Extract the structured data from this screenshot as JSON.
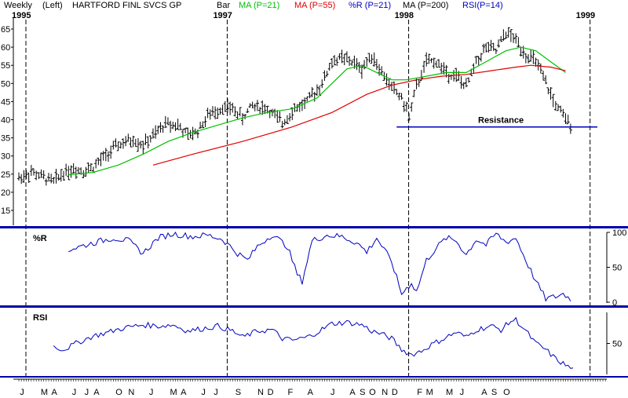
{
  "header": {
    "period": "Weekly",
    "axis_side": "(Left)",
    "title": "HARTFORD FINL SVCS GP",
    "chart_style": "Bar",
    "indicators": [
      {
        "label": "MA (P=21)",
        "color": "#00c000"
      },
      {
        "label": "MA (P=55)",
        "color": "#e00000"
      },
      {
        "label": "%R (P=21)",
        "color": "#0000c0"
      },
      {
        "label": "MA (P=200)",
        "color": "#000000"
      },
      {
        "label": "RSI(P=14)",
        "color": "#0000c0"
      }
    ]
  },
  "years": [
    {
      "label": "1995",
      "week": 0
    },
    {
      "label": "1997",
      "week": 81
    },
    {
      "label": "1998",
      "week": 154
    },
    {
      "label": "1999",
      "week": 227
    }
  ],
  "chart_data": [
    {
      "type": "bar",
      "name": "price",
      "ylim": [
        10,
        67
      ],
      "yticks": [
        15,
        20,
        25,
        30,
        35,
        40,
        45,
        50,
        55,
        60,
        65
      ],
      "ohlc_anchors": [
        [
          0,
          24
        ],
        [
          5,
          25.5
        ],
        [
          10,
          24
        ],
        [
          14,
          23
        ],
        [
          18,
          25.5
        ],
        [
          22,
          26.5
        ],
        [
          26,
          26
        ],
        [
          30,
          27
        ],
        [
          34,
          29.5
        ],
        [
          40,
          33
        ],
        [
          46,
          34.5
        ],
        [
          50,
          33
        ],
        [
          55,
          36
        ],
        [
          59,
          39
        ],
        [
          64,
          38.5
        ],
        [
          68,
          35.5
        ],
        [
          72,
          37
        ],
        [
          76,
          41
        ],
        [
          82,
          43.5
        ],
        [
          86,
          43
        ],
        [
          90,
          40.5
        ],
        [
          94,
          44
        ],
        [
          100,
          43
        ],
        [
          106,
          39
        ],
        [
          110,
          42.5
        ],
        [
          116,
          45
        ],
        [
          122,
          50
        ],
        [
          126,
          56
        ],
        [
          130,
          57
        ],
        [
          134,
          56
        ],
        [
          138,
          54
        ],
        [
          142,
          58
        ],
        [
          146,
          53
        ],
        [
          150,
          49
        ],
        [
          154,
          46
        ],
        [
          157,
          41
        ],
        [
          160,
          49
        ],
        [
          164,
          56
        ],
        [
          168,
          56
        ],
        [
          172,
          53
        ],
        [
          176,
          52
        ],
        [
          180,
          49
        ],
        [
          184,
          56
        ],
        [
          188,
          60
        ],
        [
          192,
          59
        ],
        [
          196,
          64
        ],
        [
          200,
          62
        ],
        [
          204,
          58
        ],
        [
          208,
          56
        ],
        [
          212,
          50
        ],
        [
          216,
          44
        ],
        [
          220,
          40
        ],
        [
          222,
          39
        ]
      ],
      "series": [
        {
          "name": "MA (P=21)",
          "color": "#00c000",
          "points": [
            [
              20,
              24.8
            ],
            [
              30,
              25.5
            ],
            [
              40,
              27.5
            ],
            [
              50,
              30.5
            ],
            [
              60,
              34
            ],
            [
              70,
              36.5
            ],
            [
              80,
              38.5
            ],
            [
              90,
              40.5
            ],
            [
              100,
              42
            ],
            [
              110,
              43
            ],
            [
              120,
              46
            ],
            [
              126,
              50
            ],
            [
              132,
              54
            ],
            [
              138,
              55
            ],
            [
              144,
              53
            ],
            [
              150,
              51
            ],
            [
              156,
              51
            ],
            [
              164,
              52
            ],
            [
              172,
              53
            ],
            [
              180,
              53
            ],
            [
              188,
              56
            ],
            [
              196,
              59
            ],
            [
              202,
              60
            ],
            [
              208,
              59
            ],
            [
              214,
              56
            ],
            [
              220,
              53
            ]
          ]
        },
        {
          "name": "MA (P=55)",
          "color": "#e00000",
          "points": [
            [
              54,
              27.5
            ],
            [
              70,
              30.5
            ],
            [
              90,
              34
            ],
            [
              110,
              38
            ],
            [
              126,
              42
            ],
            [
              140,
              47
            ],
            [
              150,
              49.5
            ],
            [
              160,
              51
            ],
            [
              170,
              52
            ],
            [
              180,
              52.5
            ],
            [
              190,
              53.5
            ],
            [
              200,
              54.5
            ],
            [
              206,
              55
            ],
            [
              214,
              54.5
            ],
            [
              220,
              53.5
            ]
          ]
        }
      ],
      "annotations": [
        {
          "text": "Resistance",
          "y": 38,
          "from_week": 152,
          "to_week": 226,
          "color": "#0000c0"
        }
      ]
    },
    {
      "type": "line",
      "name": "%R (P=21)",
      "ylim": [
        -5,
        105
      ],
      "yticks": [
        0,
        50,
        100
      ],
      "anchors": [
        [
          20,
          75
        ],
        [
          30,
          85
        ],
        [
          38,
          92
        ],
        [
          44,
          88
        ],
        [
          50,
          70
        ],
        [
          56,
          92
        ],
        [
          62,
          98
        ],
        [
          70,
          94
        ],
        [
          76,
          96
        ],
        [
          82,
          90
        ],
        [
          88,
          70
        ],
        [
          92,
          60
        ],
        [
          96,
          80
        ],
        [
          102,
          97
        ],
        [
          108,
          80
        ],
        [
          112,
          40
        ],
        [
          114,
          30
        ],
        [
          118,
          88
        ],
        [
          124,
          96
        ],
        [
          130,
          94
        ],
        [
          136,
          85
        ],
        [
          140,
          72
        ],
        [
          144,
          92
        ],
        [
          150,
          58
        ],
        [
          154,
          12
        ],
        [
          158,
          28
        ],
        [
          160,
          15
        ],
        [
          164,
          60
        ],
        [
          168,
          78
        ],
        [
          172,
          92
        ],
        [
          176,
          88
        ],
        [
          180,
          68
        ],
        [
          184,
          90
        ],
        [
          188,
          82
        ],
        [
          192,
          98
        ],
        [
          196,
          86
        ],
        [
          200,
          92
        ],
        [
          204,
          60
        ],
        [
          208,
          30
        ],
        [
          212,
          5
        ],
        [
          216,
          8
        ],
        [
          219,
          12
        ],
        [
          222,
          5
        ]
      ]
    },
    {
      "type": "line",
      "name": "RSI(P=14)",
      "ylim": [
        0,
        100
      ],
      "yticks": [
        50
      ],
      "anchors": [
        [
          14,
          45
        ],
        [
          18,
          40
        ],
        [
          24,
          52
        ],
        [
          30,
          62
        ],
        [
          36,
          68
        ],
        [
          42,
          75
        ],
        [
          50,
          80
        ],
        [
          56,
          78
        ],
        [
          62,
          80
        ],
        [
          68,
          70
        ],
        [
          74,
          74
        ],
        [
          80,
          78
        ],
        [
          86,
          70
        ],
        [
          90,
          60
        ],
        [
          96,
          70
        ],
        [
          102,
          72
        ],
        [
          106,
          58
        ],
        [
          110,
          55
        ],
        [
          116,
          60
        ],
        [
          120,
          68
        ],
        [
          126,
          82
        ],
        [
          132,
          84
        ],
        [
          138,
          80
        ],
        [
          142,
          70
        ],
        [
          146,
          65
        ],
        [
          150,
          58
        ],
        [
          154,
          40
        ],
        [
          158,
          32
        ],
        [
          162,
          38
        ],
        [
          166,
          48
        ],
        [
          172,
          60
        ],
        [
          176,
          68
        ],
        [
          180,
          60
        ],
        [
          184,
          72
        ],
        [
          190,
          78
        ],
        [
          194,
          72
        ],
        [
          198,
          86
        ],
        [
          200,
          88
        ],
        [
          204,
          70
        ],
        [
          208,
          50
        ],
        [
          212,
          40
        ],
        [
          216,
          25
        ],
        [
          220,
          15
        ],
        [
          223,
          8
        ]
      ]
    }
  ],
  "x_axis": {
    "ticks": [
      {
        "label": "J",
        "week": 0
      },
      {
        "label": "M",
        "week": 9
      },
      {
        "label": "A",
        "week": 13
      },
      {
        "label": "J",
        "week": 21
      },
      {
        "label": "J",
        "week": 26
      },
      {
        "label": "A",
        "week": 30
      },
      {
        "label": "O",
        "week": 39
      },
      {
        "label": "N",
        "week": 44
      },
      {
        "label": "J",
        "week": 52
      },
      {
        "label": "M",
        "week": 61
      },
      {
        "label": "A",
        "week": 65
      },
      {
        "label": "J",
        "week": 73
      },
      {
        "label": "J",
        "week": 78
      },
      {
        "label": "S",
        "week": 87
      },
      {
        "label": "N",
        "week": 96
      },
      {
        "label": "D",
        "week": 100
      },
      {
        "label": "F",
        "week": 108
      },
      {
        "label": "A",
        "week": 116
      },
      {
        "label": "J",
        "week": 125
      },
      {
        "label": "A",
        "week": 133
      },
      {
        "label": "S",
        "week": 137
      },
      {
        "label": "O",
        "week": 141
      },
      {
        "label": "N",
        "week": 146
      },
      {
        "label": "D",
        "week": 150
      },
      {
        "label": "F",
        "week": 160
      },
      {
        "label": "M",
        "week": 164
      },
      {
        "label": "M",
        "week": 172
      },
      {
        "label": "J",
        "week": 177
      },
      {
        "label": "A",
        "week": 186
      },
      {
        "label": "S",
        "week": 190
      },
      {
        "label": "O",
        "week": 195
      }
    ]
  },
  "panels": {
    "williams_label": "%R",
    "rsi_label": "RSI"
  }
}
